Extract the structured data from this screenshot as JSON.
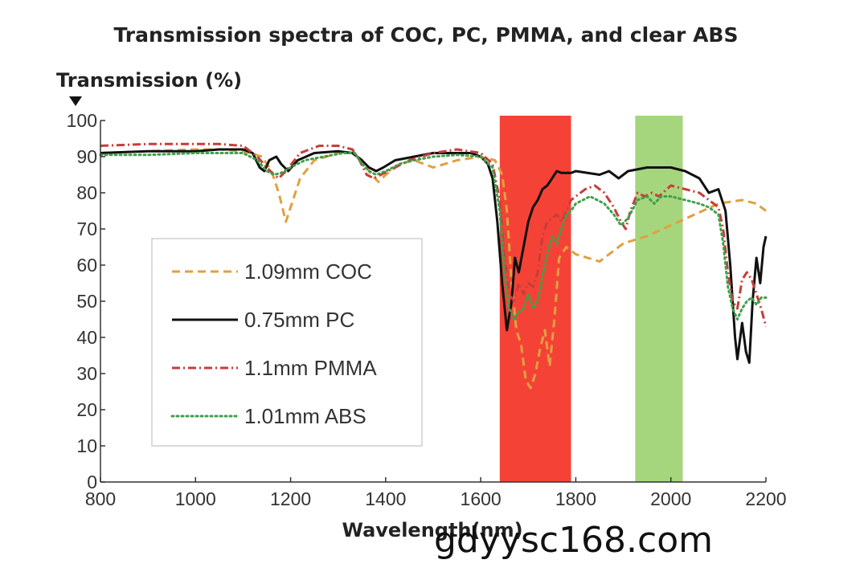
{
  "chart_data": {
    "type": "line",
    "title": "Transmission spectra of COC, PC, PMMA, and clear ABS",
    "xlabel": "Wavelength(nm)",
    "ylabel": "Transmission (%)",
    "xlim": [
      800,
      2200
    ],
    "ylim": [
      0,
      100
    ],
    "xticks": [
      800,
      1000,
      1200,
      1400,
      1600,
      1800,
      2000,
      2200
    ],
    "yticks": [
      0,
      10,
      20,
      30,
      40,
      50,
      60,
      70,
      80,
      90,
      100
    ],
    "grid": false,
    "legend_position": "left",
    "highlight_bands": [
      {
        "x": [
          1640,
          1790
        ],
        "color": "#f44336"
      },
      {
        "x": [
          1925,
          2025
        ],
        "color": "#a5d67d"
      }
    ],
    "series": [
      {
        "name": "1.09mm COC",
        "color": "#e0a040",
        "dash": "dashed",
        "points": [
          [
            800,
            91
          ],
          [
            900,
            91.5
          ],
          [
            1000,
            92
          ],
          [
            1050,
            92
          ],
          [
            1100,
            91.5
          ],
          [
            1140,
            90
          ],
          [
            1160,
            86
          ],
          [
            1175,
            80
          ],
          [
            1190,
            72
          ],
          [
            1200,
            76
          ],
          [
            1220,
            84
          ],
          [
            1250,
            89
          ],
          [
            1300,
            91
          ],
          [
            1330,
            91
          ],
          [
            1350,
            89
          ],
          [
            1370,
            85
          ],
          [
            1385,
            83
          ],
          [
            1400,
            85
          ],
          [
            1430,
            88
          ],
          [
            1460,
            89
          ],
          [
            1500,
            87
          ],
          [
            1550,
            89
          ],
          [
            1600,
            90
          ],
          [
            1630,
            89
          ],
          [
            1645,
            85
          ],
          [
            1655,
            75
          ],
          [
            1665,
            55
          ],
          [
            1675,
            42
          ],
          [
            1685,
            38
          ],
          [
            1695,
            28
          ],
          [
            1705,
            26
          ],
          [
            1715,
            30
          ],
          [
            1725,
            37
          ],
          [
            1735,
            42
          ],
          [
            1745,
            32
          ],
          [
            1755,
            45
          ],
          [
            1765,
            62
          ],
          [
            1780,
            65
          ],
          [
            1800,
            63
          ],
          [
            1850,
            61
          ],
          [
            1900,
            66
          ],
          [
            1950,
            68
          ],
          [
            2000,
            71
          ],
          [
            2050,
            74
          ],
          [
            2100,
            77
          ],
          [
            2150,
            78
          ],
          [
            2180,
            77
          ],
          [
            2200,
            75
          ]
        ]
      },
      {
        "name": "0.75mm PC",
        "color": "#111111",
        "dash": "solid",
        "points": [
          [
            800,
            91
          ],
          [
            900,
            91.5
          ],
          [
            1000,
            91.5
          ],
          [
            1050,
            92
          ],
          [
            1100,
            92
          ],
          [
            1120,
            91
          ],
          [
            1135,
            87
          ],
          [
            1145,
            86
          ],
          [
            1155,
            89
          ],
          [
            1170,
            90
          ],
          [
            1180,
            88
          ],
          [
            1195,
            86
          ],
          [
            1215,
            89
          ],
          [
            1250,
            91
          ],
          [
            1300,
            91.5
          ],
          [
            1330,
            91
          ],
          [
            1350,
            89
          ],
          [
            1365,
            87
          ],
          [
            1380,
            86
          ],
          [
            1395,
            87
          ],
          [
            1420,
            89
          ],
          [
            1460,
            90
          ],
          [
            1500,
            91
          ],
          [
            1550,
            91
          ],
          [
            1580,
            91
          ],
          [
            1600,
            90
          ],
          [
            1615,
            88
          ],
          [
            1625,
            84
          ],
          [
            1635,
            72
          ],
          [
            1645,
            55
          ],
          [
            1655,
            42
          ],
          [
            1665,
            50
          ],
          [
            1672,
            62
          ],
          [
            1680,
            58
          ],
          [
            1690,
            65
          ],
          [
            1700,
            72
          ],
          [
            1710,
            76
          ],
          [
            1720,
            78
          ],
          [
            1730,
            81
          ],
          [
            1740,
            82
          ],
          [
            1750,
            84
          ],
          [
            1760,
            86
          ],
          [
            1770,
            85.5
          ],
          [
            1790,
            85.5
          ],
          [
            1800,
            86
          ],
          [
            1850,
            85
          ],
          [
            1870,
            86
          ],
          [
            1890,
            84
          ],
          [
            1910,
            86
          ],
          [
            1950,
            87
          ],
          [
            2000,
            87
          ],
          [
            2030,
            86
          ],
          [
            2060,
            84
          ],
          [
            2080,
            80
          ],
          [
            2100,
            81
          ],
          [
            2115,
            75
          ],
          [
            2125,
            60
          ],
          [
            2135,
            40
          ],
          [
            2140,
            34
          ],
          [
            2150,
            44
          ],
          [
            2158,
            36
          ],
          [
            2165,
            33
          ],
          [
            2172,
            50
          ],
          [
            2180,
            62
          ],
          [
            2188,
            55
          ],
          [
            2195,
            65
          ],
          [
            2200,
            68
          ]
        ]
      },
      {
        "name": "1.1mm PMMA",
        "color": "#c83c3c",
        "dash": "dashdot",
        "points": [
          [
            800,
            93
          ],
          [
            900,
            93.5
          ],
          [
            1000,
            93.5
          ],
          [
            1050,
            93.5
          ],
          [
            1100,
            93
          ],
          [
            1130,
            90
          ],
          [
            1150,
            87
          ],
          [
            1165,
            85
          ],
          [
            1175,
            84
          ],
          [
            1190,
            86
          ],
          [
            1220,
            91
          ],
          [
            1260,
            93
          ],
          [
            1300,
            93
          ],
          [
            1330,
            92
          ],
          [
            1345,
            89
          ],
          [
            1360,
            85
          ],
          [
            1375,
            84
          ],
          [
            1390,
            85
          ],
          [
            1420,
            87
          ],
          [
            1450,
            89
          ],
          [
            1500,
            91
          ],
          [
            1550,
            92
          ],
          [
            1600,
            91
          ],
          [
            1625,
            88
          ],
          [
            1640,
            78
          ],
          [
            1650,
            62
          ],
          [
            1660,
            52
          ],
          [
            1670,
            50
          ],
          [
            1680,
            55
          ],
          [
            1690,
            52
          ],
          [
            1700,
            55
          ],
          [
            1710,
            54
          ],
          [
            1720,
            58
          ],
          [
            1730,
            68
          ],
          [
            1740,
            72
          ],
          [
            1750,
            73
          ],
          [
            1760,
            74
          ],
          [
            1770,
            72
          ],
          [
            1780,
            75
          ],
          [
            1790,
            78
          ],
          [
            1800,
            79
          ],
          [
            1820,
            81
          ],
          [
            1840,
            82
          ],
          [
            1860,
            80
          ],
          [
            1880,
            76
          ],
          [
            1895,
            72
          ],
          [
            1905,
            70
          ],
          [
            1915,
            75
          ],
          [
            1930,
            80
          ],
          [
            1945,
            79
          ],
          [
            1960,
            80
          ],
          [
            1975,
            79
          ],
          [
            2000,
            82
          ],
          [
            2030,
            81
          ],
          [
            2060,
            80
          ],
          [
            2080,
            78
          ],
          [
            2100,
            76
          ],
          [
            2110,
            70
          ],
          [
            2120,
            58
          ],
          [
            2130,
            50
          ],
          [
            2140,
            48
          ],
          [
            2150,
            56
          ],
          [
            2160,
            58
          ],
          [
            2170,
            56
          ],
          [
            2180,
            52
          ],
          [
            2190,
            48
          ],
          [
            2200,
            43
          ]
        ]
      },
      {
        "name": "1.01mm ABS",
        "color": "#3ea04a",
        "dash": "dotted",
        "points": [
          [
            800,
            90.5
          ],
          [
            900,
            90.5
          ],
          [
            1000,
            91
          ],
          [
            1050,
            91
          ],
          [
            1100,
            91
          ],
          [
            1130,
            89
          ],
          [
            1150,
            86
          ],
          [
            1165,
            85
          ],
          [
            1180,
            85.5
          ],
          [
            1200,
            87
          ],
          [
            1230,
            89
          ],
          [
            1270,
            90
          ],
          [
            1310,
            91
          ],
          [
            1335,
            91
          ],
          [
            1350,
            88
          ],
          [
            1365,
            86
          ],
          [
            1380,
            85
          ],
          [
            1400,
            86
          ],
          [
            1430,
            88
          ],
          [
            1460,
            89
          ],
          [
            1500,
            90
          ],
          [
            1550,
            90.5
          ],
          [
            1600,
            90
          ],
          [
            1625,
            87
          ],
          [
            1640,
            75
          ],
          [
            1650,
            58
          ],
          [
            1660,
            48
          ],
          [
            1670,
            45
          ],
          [
            1680,
            47
          ],
          [
            1690,
            48
          ],
          [
            1700,
            52
          ],
          [
            1710,
            48
          ],
          [
            1720,
            50
          ],
          [
            1730,
            57
          ],
          [
            1740,
            63
          ],
          [
            1750,
            68
          ],
          [
            1760,
            66
          ],
          [
            1770,
            70
          ],
          [
            1780,
            74
          ],
          [
            1790,
            75
          ],
          [
            1800,
            77
          ],
          [
            1830,
            79
          ],
          [
            1860,
            77
          ],
          [
            1880,
            74
          ],
          [
            1895,
            71
          ],
          [
            1910,
            73
          ],
          [
            1930,
            78
          ],
          [
            1950,
            79
          ],
          [
            1965,
            77
          ],
          [
            1980,
            79
          ],
          [
            2000,
            79
          ],
          [
            2030,
            78
          ],
          [
            2060,
            77
          ],
          [
            2080,
            76
          ],
          [
            2100,
            74
          ],
          [
            2110,
            66
          ],
          [
            2120,
            54
          ],
          [
            2130,
            48
          ],
          [
            2140,
            45
          ],
          [
            2150,
            48
          ],
          [
            2160,
            50
          ],
          [
            2170,
            51
          ],
          [
            2180,
            49
          ],
          [
            2190,
            51
          ],
          [
            2200,
            51
          ]
        ]
      }
    ],
    "annotations": [
      "gdyysc168.com"
    ]
  }
}
